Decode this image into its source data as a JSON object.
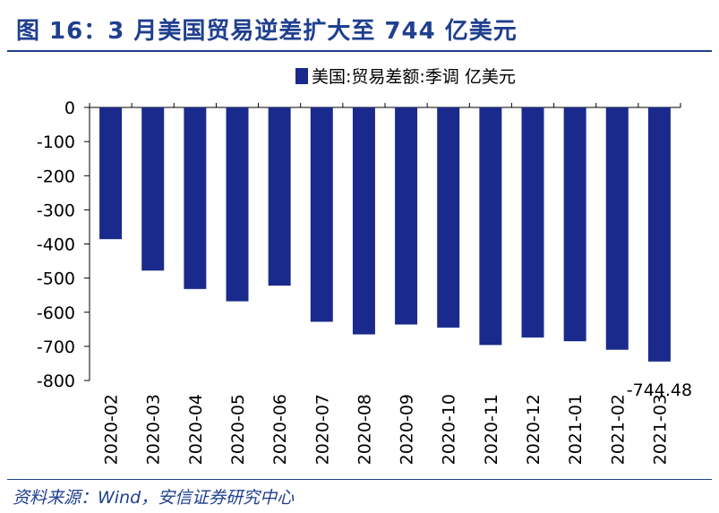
{
  "figure": {
    "title": "图 16：3 月美国贸易逆差扩大至 744 亿美元",
    "source": "资料来源：Wind，安信证券研究中心"
  },
  "colors": {
    "bar": "#1a2a8c",
    "title": "#1f3f8f",
    "axis": "#000000"
  },
  "chart_data": {
    "type": "bar",
    "categories": [
      "2020-02",
      "2020-03",
      "2020-04",
      "2020-05",
      "2020-06",
      "2020-07",
      "2020-08",
      "2020-09",
      "2020-10",
      "2020-11",
      "2020-12",
      "2021-01",
      "2021-02",
      "2021-03"
    ],
    "series": [
      {
        "name": "美国:贸易差额:季调 亿美元",
        "values": [
          -386,
          -478,
          -532,
          -568,
          -522,
          -628,
          -665,
          -636,
          -645,
          -696,
          -674,
          -685,
          -710,
          -744.48
        ]
      }
    ],
    "data_labels": [
      {
        "category": "2021-03",
        "text": "-744.48"
      }
    ],
    "ylim": [
      -800,
      0
    ],
    "yticks": [
      0,
      -100,
      -200,
      -300,
      -400,
      -500,
      -600,
      -700,
      -800
    ],
    "ytick_labels": [
      "0",
      "-100",
      "-200",
      "-300",
      "-400",
      "-500",
      "-600",
      "-700",
      "-800"
    ],
    "legend_position": "top-right",
    "grid": false,
    "xlabel": "",
    "ylabel": ""
  }
}
